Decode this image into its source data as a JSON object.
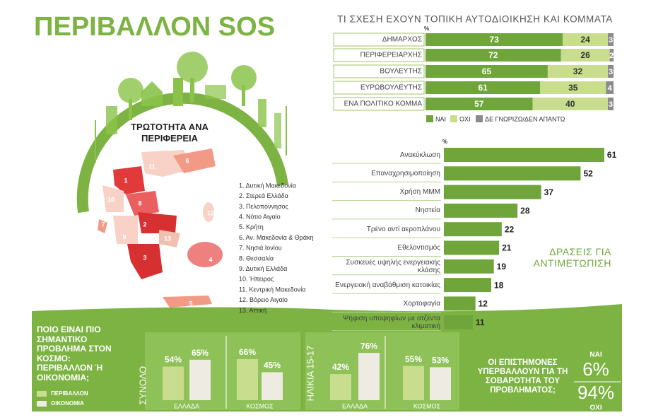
{
  "title": "ΠΕΡΙΒΑΛΛΟΝ SOS",
  "map": {
    "title": "ΤΡΩΤΟΤΗΤΑ ΑΝΑ ΠΕΡΙΦΕΡΕΙΑ",
    "region_numbers": [
      "1",
      "2",
      "3",
      "4",
      "5",
      "6",
      "7",
      "8",
      "9",
      "10",
      "11",
      "12",
      "13"
    ],
    "legend": [
      "1. Δυτική Μακεδονία",
      "2. Στερεά Ελλάδα",
      "3. Πελοπόννησος",
      "4. Νότιο Αιγαίο",
      "5. Κρήτη",
      "6. Αν. Μακεδονία & Θράκη",
      "7. Νησιά Ιονίου",
      "8. Θεσσαλία",
      "9. Δυτική Ελλάδα",
      "10. Ήπειρος",
      "11. Κεντρική Μακεδονία",
      "12. Βόρειο Αιγαίο",
      "13. Αττική"
    ]
  },
  "scientists": {
    "question": "ΟΙ ΕΠΙΣΤΗΜΟΝΕΣ ΥΠΕΡΒΑΛΛΟΥΝ ΓΙΑ ΤΗ ΣΟΒΑΡΟΤΗΤΑ ΤΟΥ ΠΡΟΒΛΗΜΑΤΟΣ;",
    "answers": [
      {
        "label": "ΝΑΙ",
        "value": "6%"
      },
      {
        "label": "ΟΧΙ",
        "value": "94%"
      }
    ]
  },
  "chart_data": [
    {
      "type": "stacked-bar",
      "title": "ΤΙ ΣΧΕΣΗ ΕΧΟΥΝ ΤΟΠΙΚΗ ΑΥΤΟΔΙΟΙΚΗΣΗ ΚΑΙ ΚΟΜΜΑΤΑ",
      "unit": "%",
      "categories": [
        "ΔΗΜΑΡΧΟΣ",
        "ΠΕΡΙΦΕΡΕΙΑΡΧΗΣ",
        "ΒΟΥΛΕΥΤΗΣ",
        "ΕΥΡΩΒΟΥΛΕΥΤΗΣ",
        "ΕΝΑ ΠΟΛΙΤΙΚΟ ΚΟΜΜΑ"
      ],
      "series": [
        {
          "name": "ΝΑΙ",
          "color": "#6fa53a",
          "values": [
            73,
            72,
            65,
            61,
            57
          ]
        },
        {
          "name": "ΟΧΙ",
          "color": "#c9dd8e",
          "values": [
            24,
            26,
            32,
            35,
            40
          ]
        },
        {
          "name": "ΔΕ ΓΝΩΡΙΖΩ/ΔΕΝ ΑΠΑΝΤΩ",
          "color": "#8a8a8a",
          "values": [
            3,
            2,
            3,
            4,
            3
          ]
        }
      ]
    },
    {
      "type": "bar",
      "title": "ΔΡΑΣΕΙΣ ΓΙΑ ΑΝΤΙΜΕΤΩΠΙΣΗ",
      "unit": "%",
      "color": "#6fa53a",
      "categories": [
        "Ανακύκλωση",
        "Επαναχρησιμοποίηση",
        "Χρήση ΜΜΜ",
        "Νηστεία",
        "Τρένο αντί αεροπλάνου",
        "Εθελοντισμός",
        "Συσκευές υψηλής ενεργειακής κλάσης",
        "Ενεργειακή αναβάθμιση κατοικίας",
        "Χορτοφαγία",
        "Ψήφιση υποψηφίων με ατζέντα κλιματική"
      ],
      "values": [
        61,
        52,
        37,
        28,
        22,
        21,
        19,
        18,
        12,
        11
      ]
    },
    {
      "type": "grouped-bar",
      "title": "ΠΟΙΟ ΕΙΝΑΙ ΠΙΟ ΣΗΜΑΝΤΙΚΟ ΠΡΟΒΛΗΜΑ ΣΤΟΝ ΚΟΣΜΟ: ΠΕΡΙΒΑΛΛΟΝ Ή ΟΙΚΟΝΟΜΙΑ;",
      "groups": [
        {
          "name": "ΣΥΝΟΛΟ",
          "categories": [
            "ΕΛΛΑΔΑ",
            "ΚΟΣΜΟΣ"
          ]
        },
        {
          "name": "ΗΛΙΚΙΑ 15-17",
          "categories": [
            "ΕΛΛΑΔΑ",
            "ΚΟΣΜΟΣ"
          ]
        }
      ],
      "series": [
        {
          "name": "ΠΕΡΙΒΑΛΛΟΝ",
          "color": "#c9dd8e",
          "values": [
            54,
            66,
            42,
            55
          ],
          "value_labels": [
            "54%",
            "66%",
            "42%",
            "55%"
          ]
        },
        {
          "name": "ΟΙΚΟΝΟΜΙΑ",
          "color": "#eeebe3",
          "values": [
            65,
            45,
            76,
            53
          ],
          "value_labels": [
            "65%",
            "45%",
            "76%",
            "53%"
          ]
        }
      ]
    }
  ]
}
